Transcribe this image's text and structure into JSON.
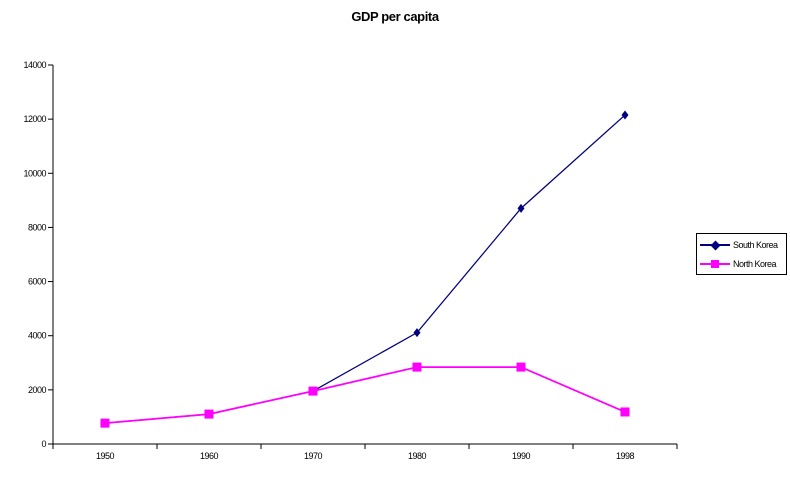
{
  "title": "GDP per capita",
  "chart_data": {
    "type": "line",
    "title": "GDP per capita",
    "categories": [
      "1950",
      "1960",
      "1970",
      "1980",
      "1990",
      "1998"
    ],
    "series": [
      {
        "name": "South Korea",
        "values": [
          770,
          1105,
          1954,
          4114,
          8704,
          12152
        ],
        "color": "#000080",
        "marker": "diamond"
      },
      {
        "name": "North Korea",
        "values": [
          770,
          1105,
          1954,
          2841,
          2841,
          1183
        ],
        "color": "#FF00FF",
        "marker": "square"
      }
    ],
    "xlabel": "",
    "ylabel": "",
    "ylim": [
      0,
      14000
    ],
    "ytick_step": 2000,
    "ytick_labels": [
      "0",
      "2000",
      "4000",
      "6000",
      "8000",
      "10000",
      "12000",
      "14000"
    ],
    "grid": false,
    "legend_position": "right",
    "axis_color": "#000000",
    "background_color": "#FFFFFF"
  }
}
